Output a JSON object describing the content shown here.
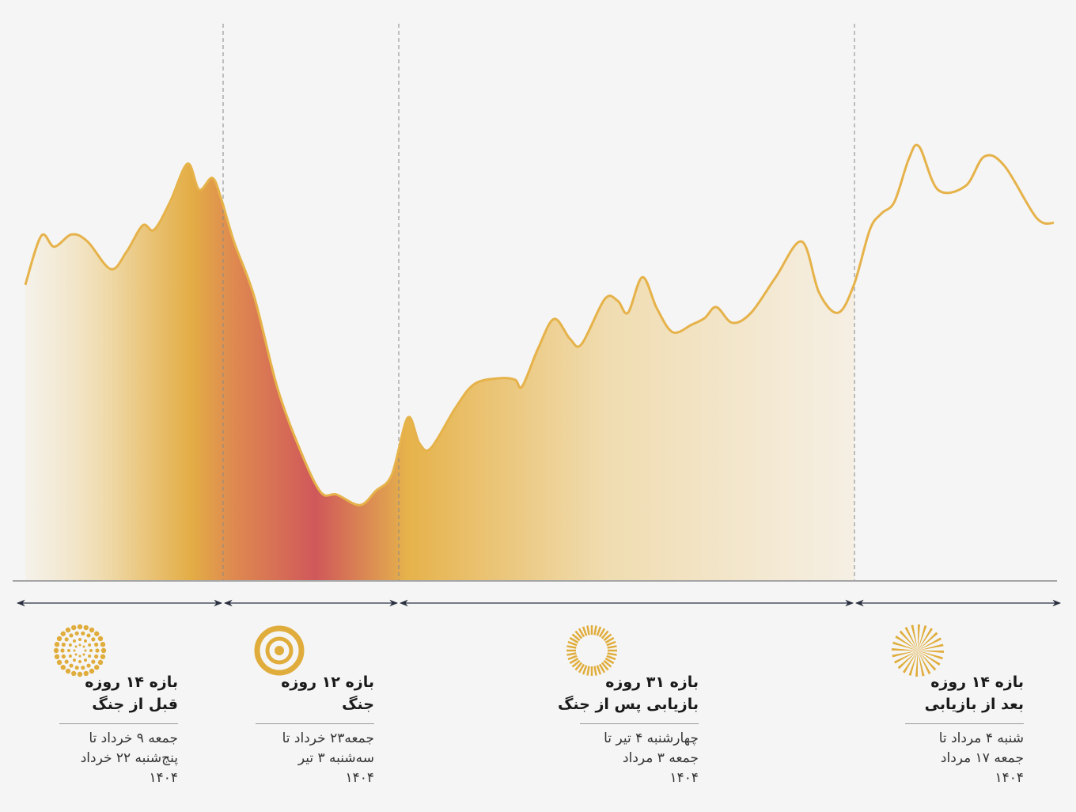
{
  "chart_data": {
    "type": "area",
    "x": [
      0,
      1.1,
      2,
      3.2,
      4.3,
      5.9,
      7,
      8.1,
      8.9,
      10,
      11.2,
      12,
      12.9,
      13.5,
      14.4,
      15.8,
      17.4,
      19,
      20.4,
      21.5,
      23.1,
      24.2,
      25.3,
      26.4,
      27.2,
      28,
      29.7,
      31,
      32.7,
      33.8,
      34.3,
      35.4,
      36.5,
      37.6,
      38.4,
      40,
      40.9,
      41.6,
      42.6,
      43.6,
      44.7,
      46,
      46.9,
      47.7,
      48.8,
      50.1,
      51.8,
      53.6,
      54.8,
      56.1,
      57.2,
      58.3,
      59.1,
      60,
      61,
      61.7,
      63,
      64.9,
      66.2,
      67.6,
      69.8,
      71
    ],
    "values": [
      62.2,
      72.5,
      70.2,
      72.8,
      71.3,
      65.5,
      69.2,
      74.7,
      73.8,
      79.7,
      87.7,
      82.2,
      84.7,
      80.5,
      71.3,
      59.7,
      40.5,
      27.2,
      18.5,
      18,
      15.8,
      18.8,
      22.2,
      34.2,
      28.8,
      27.8,
      36.3,
      41.3,
      42.5,
      42.2,
      40.8,
      48.8,
      55,
      50.8,
      49.7,
      59.2,
      58.8,
      56.3,
      63.8,
      57.2,
      52.2,
      53.8,
      55.2,
      57.5,
      54.2,
      56.3,
      63.8,
      71.3,
      60.5,
      56.3,
      62.2,
      73.8,
      77.2,
      79.7,
      88.8,
      91.3,
      82.2,
      83,
      89.2,
      87.2,
      76.3,
      75.2
    ],
    "color": "#e6b24a",
    "xlim": [
      0,
      71
    ],
    "ylim": [
      0,
      100
    ],
    "periods": [
      {
        "title": "بازه ۱۴ روزه",
        "subtitle": "قبل از جنگ",
        "dates": [
          "جمعه ۹ خرداد تا",
          "پنج‌شنبه ۲۲ خرداد",
          "۱۴۰۴"
        ]
      },
      {
        "title": "بازه ۱۲ روزه",
        "subtitle": "جنگ",
        "dates": [
          "جمعه۲۳ خرداد تا",
          "سه‌شنبه ۳ تیر",
          "۱۴۰۴"
        ]
      },
      {
        "title": "بازه ۳۱ روزه",
        "subtitle": "بازیابی پس از جنگ",
        "dates": [
          "چهارشنبه ۴ تیر تا",
          "جمعه ۳ مرداد",
          "۱۴۰۴"
        ]
      },
      {
        "title": "بازه ۱۴ روزه",
        "subtitle": "بعد از بازیابی",
        "dates": [
          "شنبه ۴ مرداد تا",
          "جمعه ۱۷ مرداد",
          "۱۴۰۴"
        ]
      }
    ]
  }
}
